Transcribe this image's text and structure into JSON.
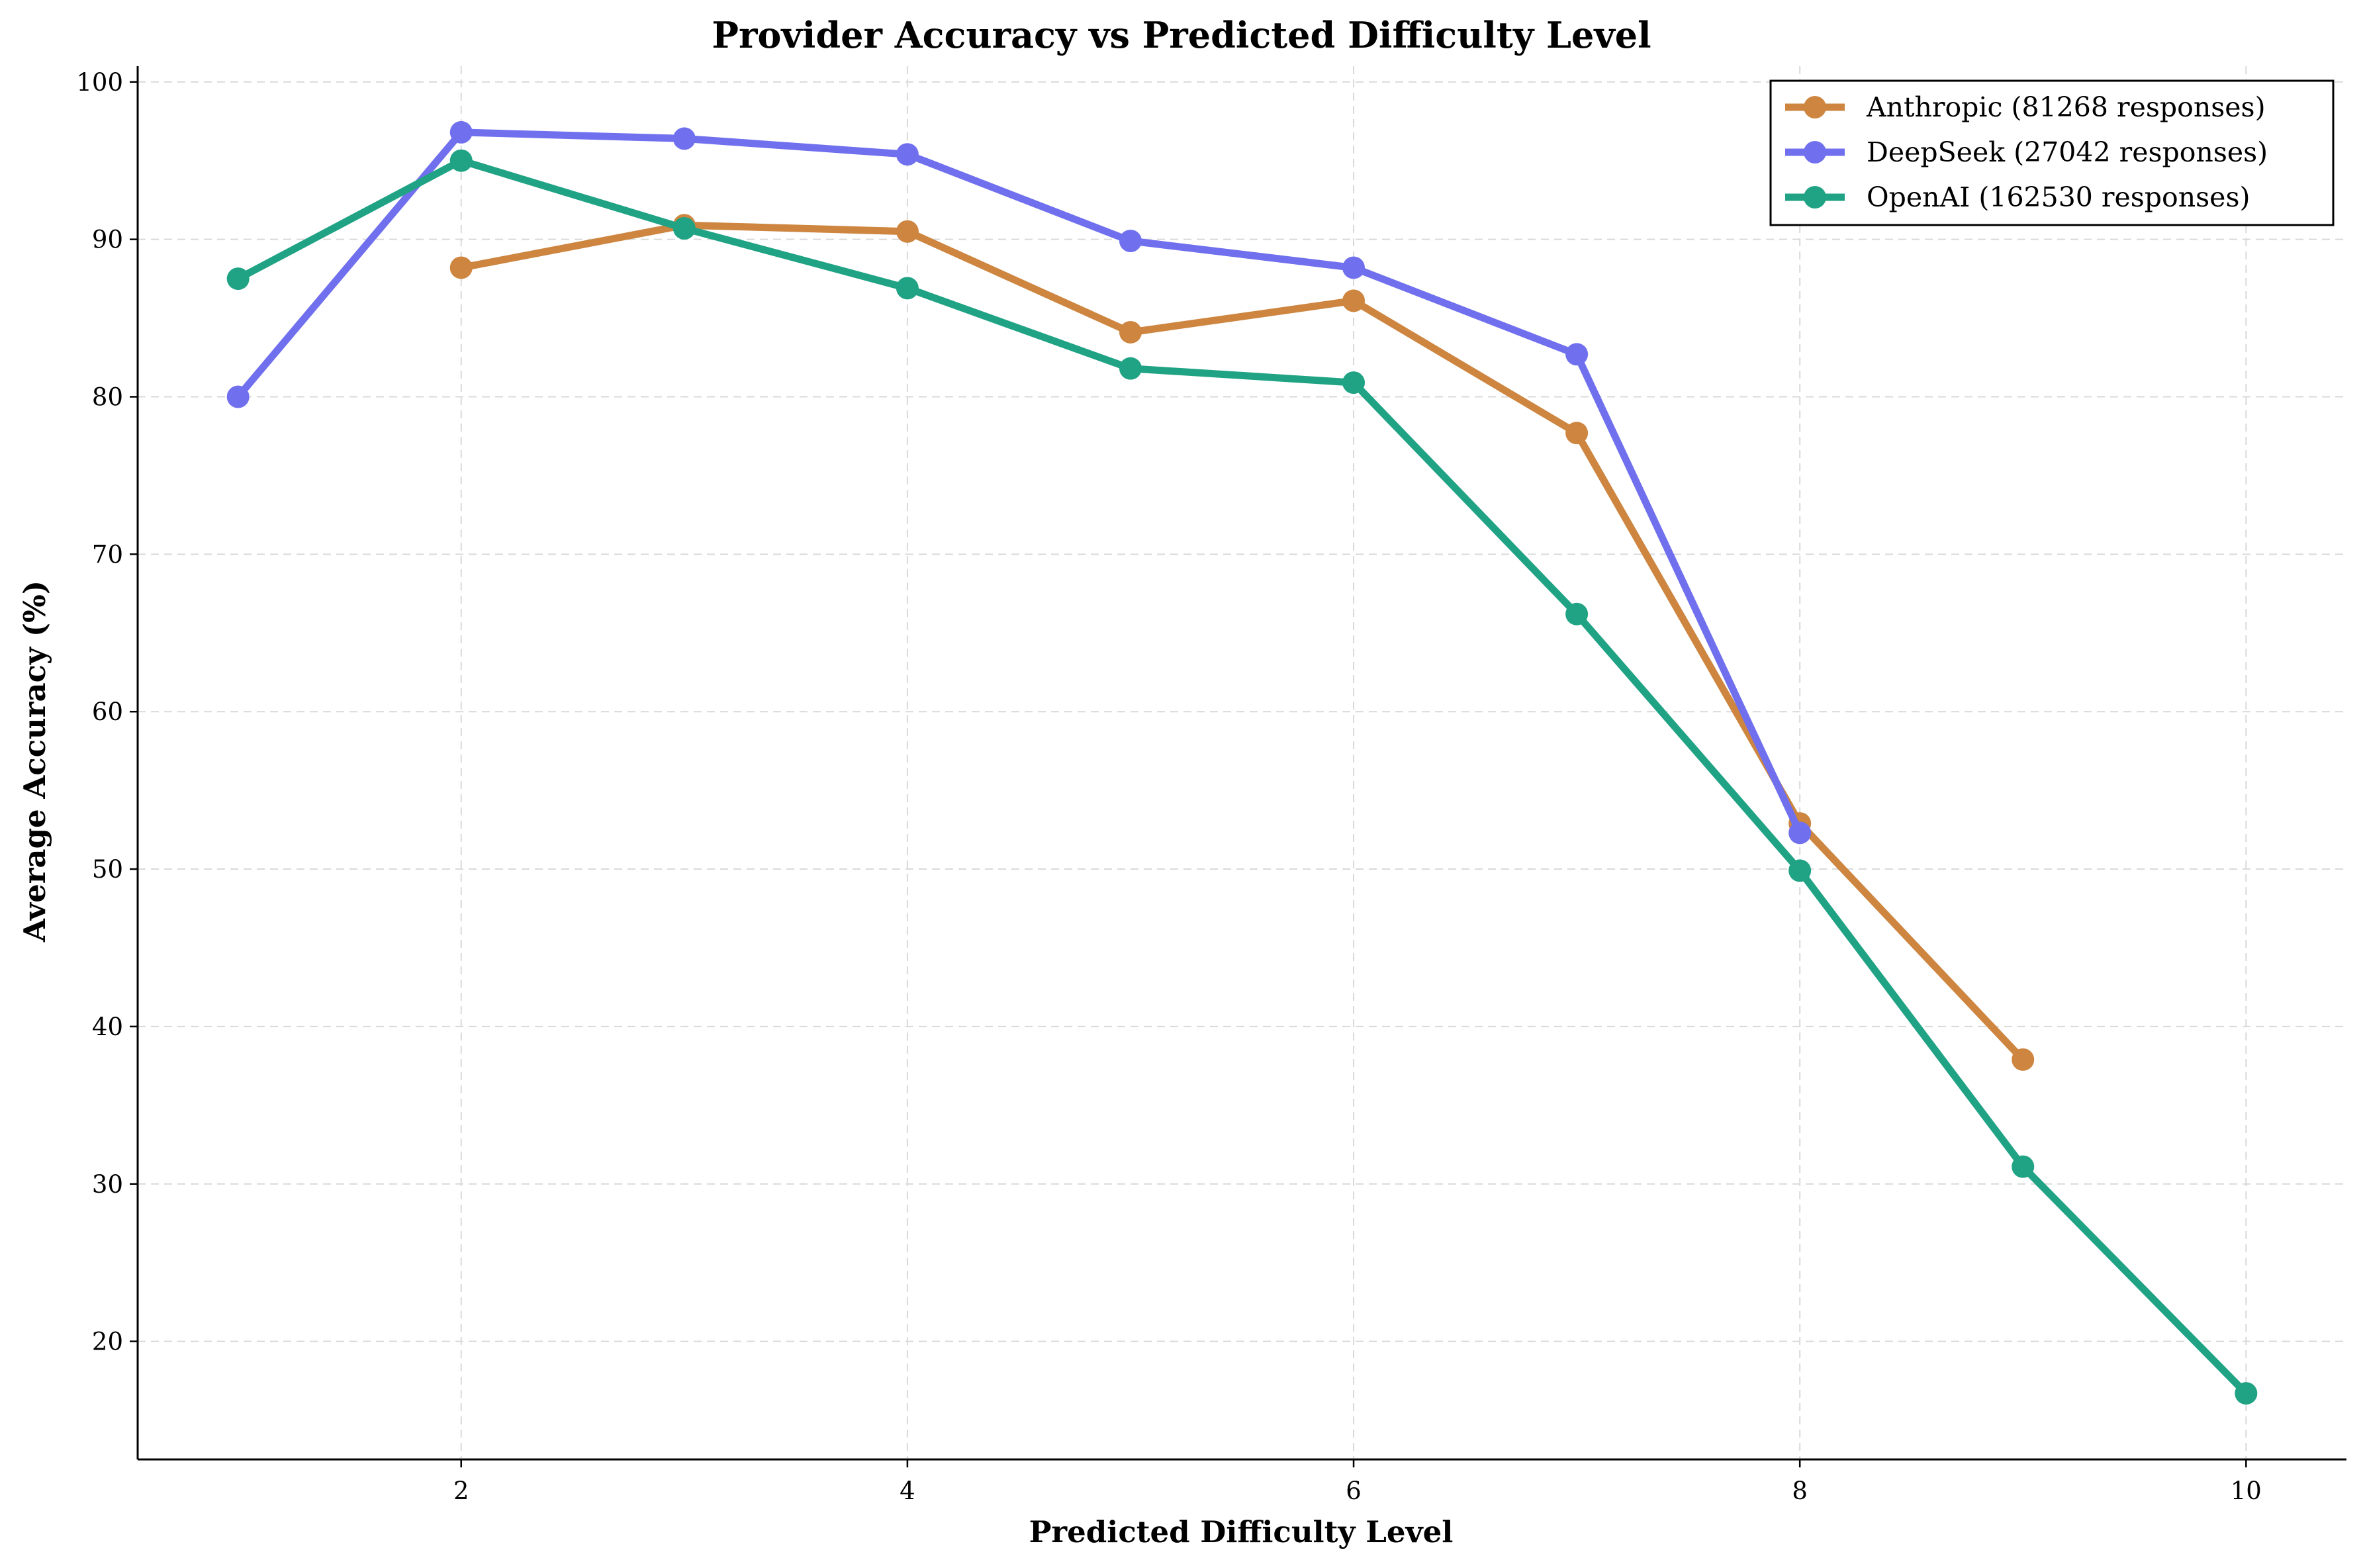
{
  "chart_data": {
    "type": "line",
    "title": "Provider Accuracy vs Predicted Difficulty Level",
    "xlabel": "Predicted Difficulty Level",
    "ylabel": "Average Accuracy (%)",
    "xlim": [
      0.55,
      10.45
    ],
    "ylim": [
      12.5,
      101
    ],
    "xticks": [
      2,
      4,
      6,
      8,
      10
    ],
    "yticks": [
      20,
      30,
      40,
      50,
      60,
      70,
      80,
      90,
      100
    ],
    "grid": true,
    "legend_position": "top-right",
    "series": [
      {
        "name": "Anthropic (81268 responses)",
        "color": "#cd853f",
        "x": [
          2,
          3,
          4,
          5,
          6,
          7,
          8,
          9
        ],
        "values": [
          88.2,
          90.9,
          90.5,
          84.1,
          86.1,
          77.7,
          52.9,
          37.9
        ]
      },
      {
        "name": "DeepSeek (27042 responses)",
        "color": "#7070ee",
        "x": [
          1,
          2,
          3,
          4,
          5,
          6,
          7,
          8
        ],
        "values": [
          80.0,
          96.8,
          96.4,
          95.4,
          89.9,
          88.2,
          82.7,
          52.3
        ]
      },
      {
        "name": "OpenAI (162530 responses)",
        "color": "#20a384",
        "x": [
          1,
          2,
          3,
          4,
          5,
          6,
          7,
          8,
          9,
          10
        ],
        "values": [
          87.5,
          95.0,
          90.7,
          86.9,
          81.8,
          80.9,
          66.2,
          49.9,
          31.1,
          16.7
        ]
      }
    ]
  }
}
